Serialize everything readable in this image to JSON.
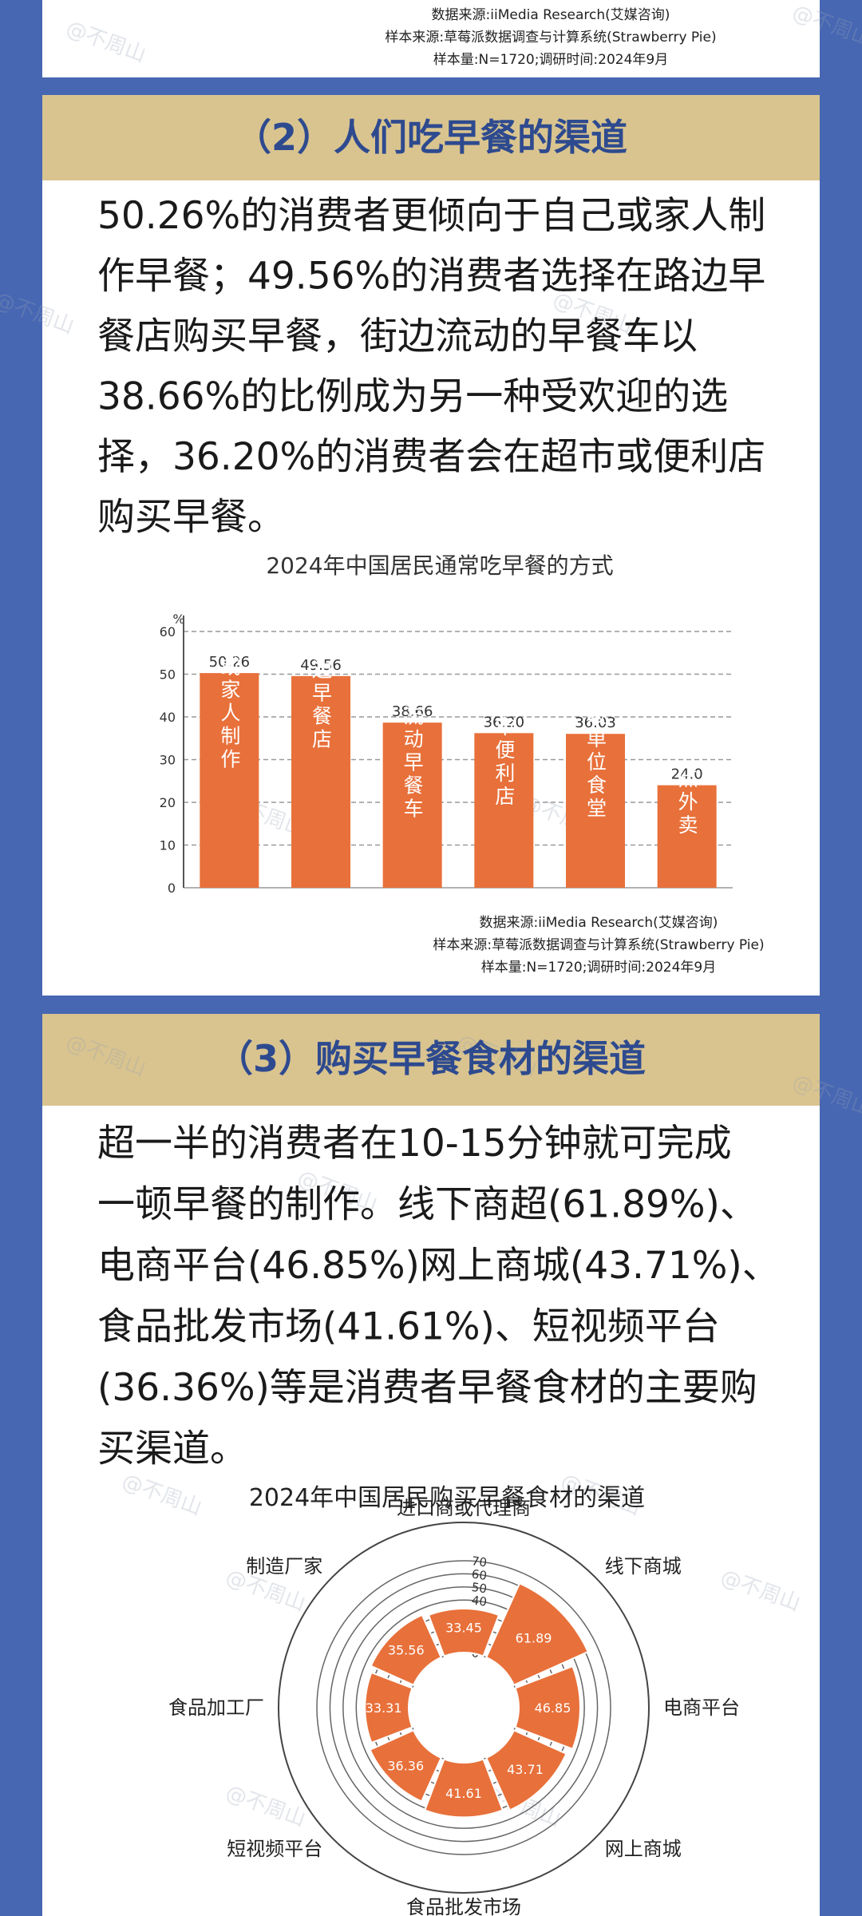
{
  "watermark": "@不周山",
  "sections": [
    {
      "sources": [
        "数据来源:iiMedia Research(艾媒咨询)",
        "样本来源:草莓派数据调查与计算系统(Strawberry Pie)",
        "样本量:N=1720;调研时间:2024年9月"
      ]
    },
    {
      "header": "（2）人们吃早餐的渠道",
      "paragraph": [
        "50.26%的消费者更倾向于自己或家人制",
        "作早餐；49.56%的消费者选择在路边早",
        "餐店购买早餐，街边流动的早餐车以",
        "38.66%的比例成为另一种受欢迎的选",
        "择，36.20%的消费者会在超市或便利店",
        "购买早餐。"
      ],
      "sources": [
        "数据来源:iiMedia Research(艾媒咨询)",
        "样本来源:草莓派数据调查与计算系统(Strawberry Pie)",
        "样本量:N=1720;调研时间:2024年9月"
      ]
    },
    {
      "header": "（3）购买早餐食材的渠道",
      "paragraph": [
        "超一半的消费者在10-15分钟就可完成",
        "一顿早餐的制作。线下商超(61.89%)、",
        "电商平台(46.85%)网上商城(43.71%)、",
        "食品批发市场(41.61%)、短视频平台",
        "(36.36%)等是消费者早餐食材的主要购",
        "买渠道。"
      ]
    }
  ],
  "chart_data": [
    {
      "type": "bar",
      "title": "2024年中国居民通常吃早餐的方式",
      "categories": [
        "自己或家人制作",
        "路边早餐店",
        "街边流动早餐车",
        "超市便利店",
        "各级单位食堂",
        "点外卖"
      ],
      "values": [
        50.26,
        49.56,
        38.66,
        36.2,
        36.03,
        24
      ],
      "value_labels": [
        "50.26",
        "49.56",
        "38.66",
        "36.20",
        "36.03",
        "24.0"
      ],
      "color": "#e8703a",
      "ylabel": "%",
      "ylim": [
        0,
        60
      ],
      "yticks": [
        0,
        10,
        20,
        30,
        40,
        50,
        60
      ],
      "grid": true
    },
    {
      "type": "polar_bar",
      "title": "2024年中国居民购买早餐食材的渠道",
      "categories": [
        "进口商或代理商",
        "线下商城",
        "电商平台",
        "网上商城",
        "食品批发市场",
        "短视频平台",
        "食品加工厂",
        "制造厂家"
      ],
      "values": [
        33.45,
        61.89,
        46.85,
        43.71,
        41.61,
        36.36,
        33.31,
        35.56
      ],
      "color": "#e8703a",
      "rlim": [
        0,
        70
      ],
      "rticks": [
        0,
        10,
        20,
        30,
        40,
        50,
        60,
        70
      ],
      "grid": true
    }
  ]
}
